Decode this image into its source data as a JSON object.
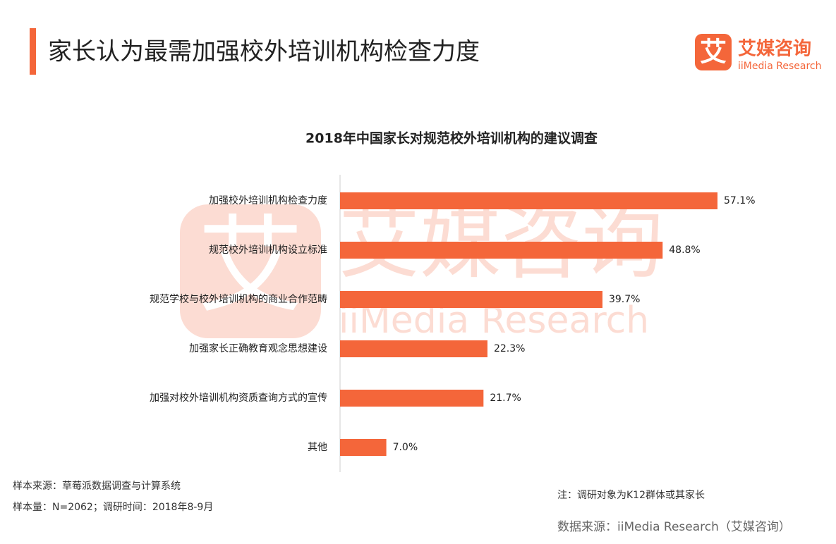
{
  "header": {
    "title": "家长认为最需加强校外培训机构检查力度"
  },
  "logo": {
    "mark": "艾",
    "name": "艾媒咨询",
    "english": "iiMedia Research"
  },
  "chart_data": {
    "type": "bar",
    "orientation": "horizontal",
    "title": "2018年中国家长对规范校外培训机构的建议调查",
    "categories": [
      "加强校外培训机构检查力度",
      "规范校外培训机构设立标准",
      "规范学校与校外培训机构的商业合作范畴",
      "加强家长正确教育观念思想建设",
      "加强对校外培训机构资质查询方式的宣传",
      "其他"
    ],
    "values": [
      57.1,
      48.8,
      39.7,
      22.3,
      21.7,
      7.0
    ],
    "value_labels": [
      "57.1%",
      "48.8%",
      "39.7%",
      "22.3%",
      "21.7%",
      "7.0%"
    ],
    "color": "#f4663a"
  },
  "footer": {
    "source_lines": [
      "样本来源：草莓派数据调查与计算系统",
      "样本量：N=2062；调研时间：2018年8-9月"
    ],
    "note": "注：调研对象为K12群体或其家长",
    "data_source": "数据来源：iiMedia Research（艾媒咨询）"
  }
}
